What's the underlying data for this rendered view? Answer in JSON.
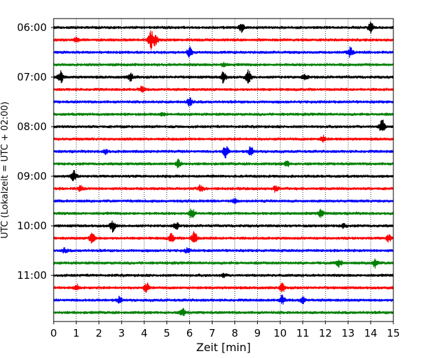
{
  "chart_data": {
    "type": "line",
    "subtype": "helicorder",
    "xlabel": "Zeit  [min]",
    "ylabel": "UTC (Lokalzeit = UTC + 02:00)",
    "xlim": [
      0,
      15
    ],
    "xticks": [
      "0",
      "1",
      "2",
      "3",
      "4",
      "5",
      "6",
      "7",
      "8",
      "9",
      "10",
      "11",
      "12",
      "13",
      "14",
      "15"
    ],
    "yticks": [
      "06:00",
      "07:00",
      "08:00",
      "09:00",
      "10:00",
      "11:00"
    ],
    "grid": "vertical dotted",
    "line_colors": [
      "#000000",
      "#ff0000",
      "#0000ff",
      "#008000"
    ],
    "traces": [
      {
        "start": "06:00",
        "color": "#000000",
        "events": [
          [
            8.3,
            1.0
          ],
          [
            14.0,
            1.2
          ]
        ]
      },
      {
        "start": "06:15",
        "color": "#ff0000",
        "events": [
          [
            1.0,
            0.5
          ],
          [
            4.3,
            2.4
          ],
          [
            4.5,
            1.0
          ]
        ]
      },
      {
        "start": "06:30",
        "color": "#0000ff",
        "events": [
          [
            6.0,
            1.2
          ],
          [
            13.1,
            1.2
          ]
        ]
      },
      {
        "start": "06:45",
        "color": "#008000",
        "events": [
          [
            7.5,
            0.4
          ]
        ]
      },
      {
        "start": "07:00",
        "color": "#000000",
        "events": [
          [
            0.3,
            1.5
          ],
          [
            3.4,
            0.9
          ],
          [
            7.5,
            1.3
          ],
          [
            8.6,
            1.5
          ],
          [
            11.1,
            0.7
          ]
        ]
      },
      {
        "start": "07:15",
        "color": "#ff0000",
        "events": [
          [
            3.9,
            0.7
          ]
        ]
      },
      {
        "start": "07:30",
        "color": "#0000ff",
        "events": [
          [
            6.0,
            1.0
          ]
        ]
      },
      {
        "start": "07:45",
        "color": "#008000",
        "events": [
          [
            4.8,
            0.4
          ]
        ]
      },
      {
        "start": "08:00",
        "color": "#000000",
        "events": [
          [
            14.5,
            1.6
          ]
        ]
      },
      {
        "start": "08:15",
        "color": "#ff0000",
        "events": [
          [
            11.9,
            0.7
          ]
        ]
      },
      {
        "start": "08:30",
        "color": "#0000ff",
        "events": [
          [
            2.3,
            0.6
          ],
          [
            7.6,
            1.5
          ],
          [
            8.7,
            1.0
          ]
        ]
      },
      {
        "start": "08:45",
        "color": "#008000",
        "events": [
          [
            5.5,
            1.0
          ],
          [
            10.3,
            0.6
          ]
        ]
      },
      {
        "start": "09:00",
        "color": "#000000",
        "events": [
          [
            0.9,
            1.3
          ]
        ]
      },
      {
        "start": "09:15",
        "color": "#ff0000",
        "events": [
          [
            1.2,
            0.6
          ],
          [
            6.5,
            0.9
          ],
          [
            9.8,
            0.7
          ]
        ]
      },
      {
        "start": "09:30",
        "color": "#0000ff",
        "events": [
          [
            8.0,
            0.5
          ]
        ]
      },
      {
        "start": "09:45",
        "color": "#008000",
        "events": [
          [
            6.1,
            1.3
          ],
          [
            11.8,
            1.0
          ]
        ]
      },
      {
        "start": "10:00",
        "color": "#000000",
        "events": [
          [
            2.6,
            1.3
          ],
          [
            5.4,
            0.9
          ],
          [
            12.8,
            0.5
          ]
        ]
      },
      {
        "start": "10:15",
        "color": "#ff0000",
        "events": [
          [
            1.7,
            1.4
          ],
          [
            5.2,
            1.0
          ],
          [
            6.2,
            1.7
          ],
          [
            14.8,
            0.8
          ]
        ]
      },
      {
        "start": "10:30",
        "color": "#0000ff",
        "events": [
          [
            0.5,
            0.5
          ],
          [
            5.9,
            0.5
          ]
        ]
      },
      {
        "start": "10:45",
        "color": "#008000",
        "events": [
          [
            12.6,
            0.8
          ],
          [
            14.2,
            1.0
          ]
        ]
      },
      {
        "start": "11:00",
        "color": "#000000",
        "events": [
          [
            7.5,
            0.4
          ]
        ]
      },
      {
        "start": "11:15",
        "color": "#ff0000",
        "events": [
          [
            1.0,
            0.8
          ],
          [
            4.1,
            1.1
          ],
          [
            10.1,
            0.9
          ]
        ]
      },
      {
        "start": "11:30",
        "color": "#0000ff",
        "events": [
          [
            2.9,
            0.7
          ],
          [
            10.1,
            1.1
          ],
          [
            11.0,
            0.8
          ]
        ]
      },
      {
        "start": "11:45",
        "color": "#008000",
        "events": [
          [
            5.7,
            0.9
          ]
        ]
      }
    ]
  }
}
